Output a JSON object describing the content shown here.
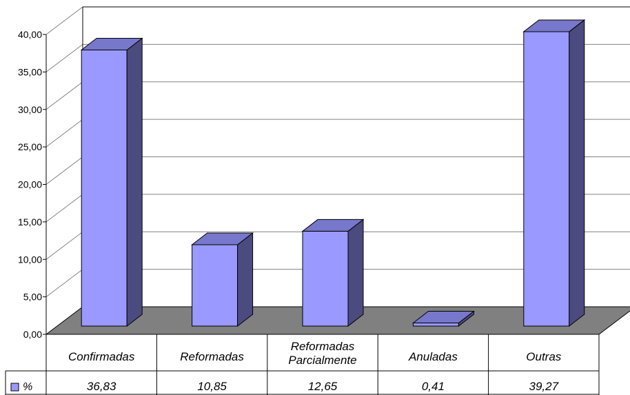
{
  "chart_data": {
    "type": "bar",
    "categories": [
      "Confirmadas",
      "Reformadas",
      "Reformadas\nParcialmente",
      "Anuladas",
      "Outras"
    ],
    "series": [
      {
        "name": "%",
        "values": [
          36.83,
          10.85,
          12.65,
          0.41,
          39.27
        ]
      }
    ],
    "value_labels": [
      "36,83",
      "10,85",
      "12,65",
      "0,41",
      "39,27"
    ],
    "ylim": [
      0,
      40
    ],
    "y_ticks": [
      "0,00",
      "5,00",
      "10,00",
      "15,00",
      "20,00",
      "25,00",
      "30,00",
      "35,00",
      "40,00"
    ],
    "grid": true,
    "legend": "data-table-left",
    "bar_style": "3d",
    "colors": {
      "bar_front": "#9999ff",
      "bar_top": "#7777cc",
      "bar_side": "#4b4b80",
      "floor": "#808080",
      "gridline": "#808080"
    }
  }
}
